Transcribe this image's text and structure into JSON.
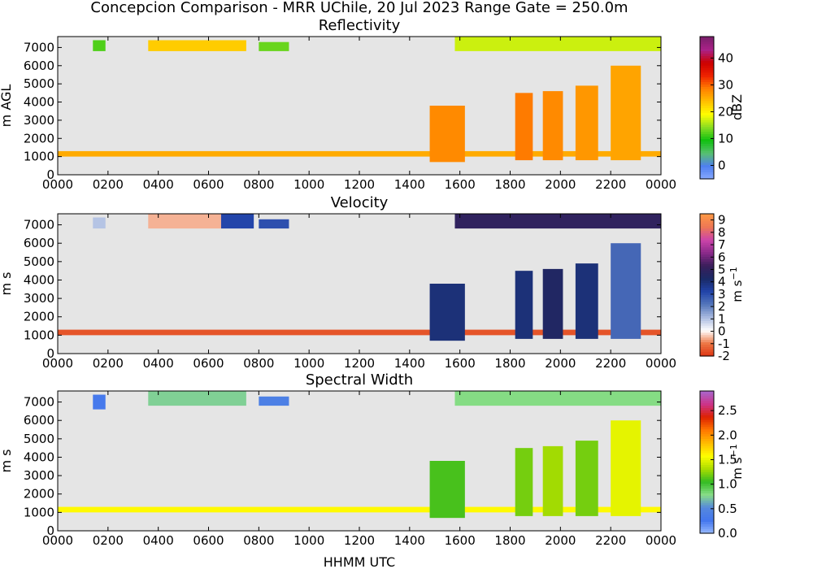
{
  "figure": {
    "suptitle": "Concepcion Comparison - MRR UChile, 20 Jul 2023 Range Gate = 250.0m",
    "xlabel": "HHMM UTC"
  },
  "colors": {
    "background": "#e5e5e5"
  },
  "chart_data": [
    {
      "type": "heatmap",
      "title": "Reflectivity",
      "ylabel": "m AGL",
      "colorbar_label": "dBZ",
      "colorbar_ticks": [
        "0",
        "10",
        "20",
        "30",
        "40"
      ],
      "colorbar_range": [
        -5,
        48
      ],
      "colormap": [
        "#88aaff",
        "#4f7ff0",
        "#58c070",
        "#10c010",
        "#88dd22",
        "#ffff00",
        "#ffc000",
        "#ff8000",
        "#ee2200",
        "#cc0000",
        "#aa2288",
        "#7a1f6a"
      ],
      "x_ticks": [
        "0000",
        "0200",
        "0400",
        "0600",
        "0800",
        "1000",
        "1200",
        "1400",
        "1600",
        "1800",
        "2000",
        "2200",
        "0000"
      ],
      "xlim": [
        0,
        24
      ],
      "y_ticks": [
        "0",
        "1000",
        "2000",
        "3000",
        "4000",
        "5000",
        "6000",
        "7000"
      ],
      "ylim": [
        0,
        7600
      ],
      "regions": [
        {
          "t0": 0.0,
          "t1": 24.0,
          "h0": 1000,
          "h1": 1300,
          "v": 25.5
        },
        {
          "t0": 3.6,
          "t1": 7.5,
          "h0": 6800,
          "h1": 7400,
          "v": 23
        },
        {
          "t0": 1.4,
          "t1": 1.9,
          "h0": 6800,
          "h1": 7400,
          "v": 12
        },
        {
          "t0": 8.0,
          "t1": 9.2,
          "h0": 6800,
          "h1": 7300,
          "v": 13
        },
        {
          "t0": 15.8,
          "t1": 24.0,
          "h0": 6800,
          "h1": 7600,
          "v": 17
        },
        {
          "t0": 14.8,
          "t1": 16.2,
          "h0": 700,
          "h1": 3800,
          "v": 28
        },
        {
          "t0": 18.2,
          "t1": 18.9,
          "h0": 800,
          "h1": 4500,
          "v": 29
        },
        {
          "t0": 19.3,
          "t1": 20.1,
          "h0": 800,
          "h1": 4600,
          "v": 28
        },
        {
          "t0": 20.6,
          "t1": 21.5,
          "h0": 800,
          "h1": 4900,
          "v": 27
        },
        {
          "t0": 22.0,
          "t1": 23.2,
          "h0": 800,
          "h1": 6000,
          "v": 26
        }
      ]
    },
    {
      "type": "heatmap",
      "title": "Velocity",
      "ylabel": "m s",
      "ylabel_sup": "−1",
      "colorbar_label": "",
      "colorbar_ticks": [
        "-2",
        "-1",
        "0",
        "1",
        "2",
        "3",
        "4",
        "5",
        "6",
        "7",
        "8",
        "9"
      ],
      "colorbar_range": [
        -2,
        9.5
      ],
      "colormap": [
        "#dd3311",
        "#ee7744",
        "#ffffff",
        "#aabbe0",
        "#5577bb",
        "#2244aa",
        "#1a2a66",
        "#3a1e5a",
        "#8a2a8a",
        "#cc44aa",
        "#ee7755",
        "#ff9944"
      ],
      "x_ticks": [
        "0000",
        "0200",
        "0400",
        "0600",
        "0800",
        "1000",
        "1200",
        "1400",
        "1600",
        "1800",
        "2000",
        "2200",
        "0000"
      ],
      "xlim": [
        0,
        24
      ],
      "y_ticks": [
        "0",
        "1000",
        "2000",
        "3000",
        "4000",
        "5000",
        "6000",
        "7000"
      ],
      "ylim": [
        0,
        7600
      ],
      "regions": [
        {
          "t0": 0.0,
          "t1": 24.0,
          "h0": 1000,
          "h1": 1300,
          "v": -1.5
        },
        {
          "t0": 3.6,
          "t1": 6.5,
          "h0": 6800,
          "h1": 7600,
          "v": -0.5
        },
        {
          "t0": 1.4,
          "t1": 1.9,
          "h0": 6800,
          "h1": 7400,
          "v": 1
        },
        {
          "t0": 6.5,
          "t1": 7.8,
          "h0": 6800,
          "h1": 7600,
          "v": 3.2
        },
        {
          "t0": 8.0,
          "t1": 9.2,
          "h0": 6800,
          "h1": 7300,
          "v": 3.0
        },
        {
          "t0": 15.8,
          "t1": 24.0,
          "h0": 6800,
          "h1": 7600,
          "v": 5
        },
        {
          "t0": 14.8,
          "t1": 16.2,
          "h0": 700,
          "h1": 3800,
          "v": 4
        },
        {
          "t0": 18.2,
          "t1": 18.9,
          "h0": 800,
          "h1": 4500,
          "v": 4
        },
        {
          "t0": 19.3,
          "t1": 20.1,
          "h0": 800,
          "h1": 4600,
          "v": 4.5
        },
        {
          "t0": 20.6,
          "t1": 21.5,
          "h0": 800,
          "h1": 4900,
          "v": 4
        },
        {
          "t0": 22.0,
          "t1": 23.2,
          "h0": 800,
          "h1": 6000,
          "v": 2.5
        }
      ]
    },
    {
      "type": "heatmap",
      "title": "Spectral Width",
      "ylabel": "m s",
      "ylabel_sup": "−1",
      "colorbar_label": "",
      "colorbar_ticks": [
        "0.0",
        "0.5",
        "1.0",
        "1.5",
        "2.0",
        "2.5"
      ],
      "colorbar_range": [
        0,
        2.9
      ],
      "colormap": [
        "#99bbff",
        "#4477ee",
        "#5588dd",
        "#88dd88",
        "#33bb22",
        "#aadd00",
        "#ffff00",
        "#ffbb00",
        "#ff7700",
        "#dd2200",
        "#cc3388",
        "#aa66cc"
      ],
      "x_ticks": [
        "0000",
        "0200",
        "0400",
        "0600",
        "0800",
        "1000",
        "1200",
        "1400",
        "1600",
        "1800",
        "2000",
        "2200",
        "0000"
      ],
      "xlim": [
        0,
        24
      ],
      "y_ticks": [
        "0",
        "1000",
        "2000",
        "3000",
        "4000",
        "5000",
        "6000",
        "7000"
      ],
      "ylim": [
        0,
        7600
      ],
      "regions": [
        {
          "t0": 0.0,
          "t1": 24.0,
          "h0": 1000,
          "h1": 1300,
          "v": 1.6
        },
        {
          "t0": 3.6,
          "t1": 7.5,
          "h0": 6800,
          "h1": 7600,
          "v": 0.75
        },
        {
          "t0": 1.4,
          "t1": 1.9,
          "h0": 6600,
          "h1": 7400,
          "v": 0.3
        },
        {
          "t0": 8.0,
          "t1": 9.2,
          "h0": 6800,
          "h1": 7300,
          "v": 0.4
        },
        {
          "t0": 15.8,
          "t1": 24.0,
          "h0": 6800,
          "h1": 7600,
          "v": 0.8
        },
        {
          "t0": 14.8,
          "t1": 16.2,
          "h0": 700,
          "h1": 3800,
          "v": 1.1
        },
        {
          "t0": 18.2,
          "t1": 18.9,
          "h0": 800,
          "h1": 4500,
          "v": 1.2
        },
        {
          "t0": 19.3,
          "t1": 20.1,
          "h0": 800,
          "h1": 4600,
          "v": 1.3
        },
        {
          "t0": 20.6,
          "t1": 21.5,
          "h0": 800,
          "h1": 4900,
          "v": 1.2
        },
        {
          "t0": 22.0,
          "t1": 23.2,
          "h0": 800,
          "h1": 6000,
          "v": 1.5
        }
      ]
    }
  ]
}
